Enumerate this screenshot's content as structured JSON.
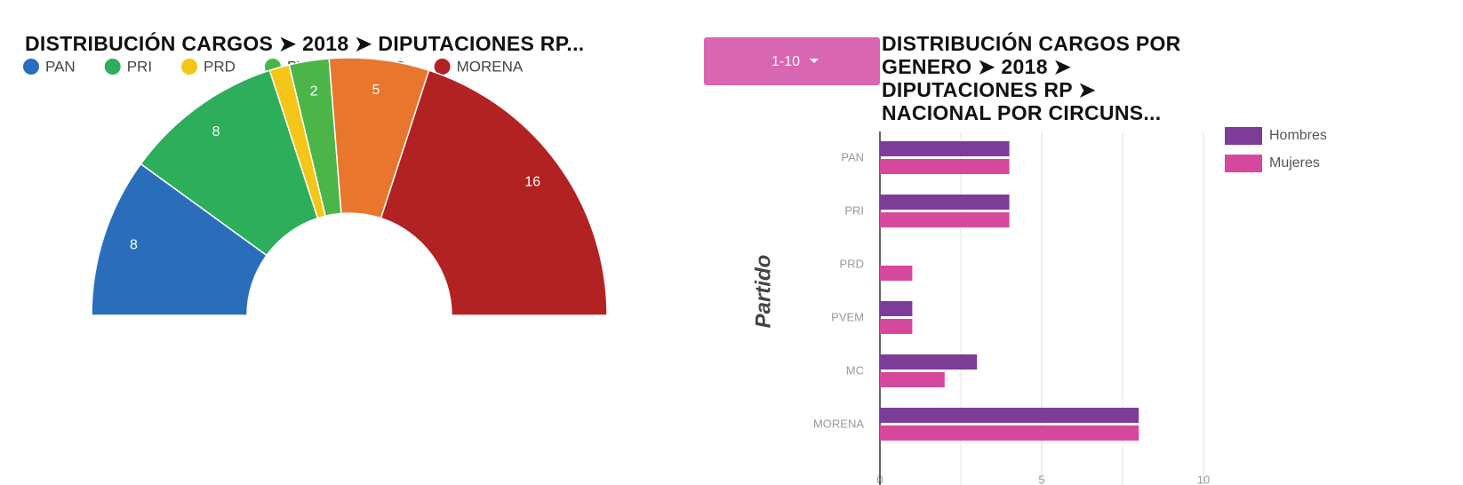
{
  "controls": {
    "page_button": "1-10"
  },
  "chart_data": [
    {
      "type": "donut",
      "title": "DISTRIBUCIÓN CARGOS ➤ 2018 ➤ DIPUTACIONES RP...",
      "categories": [
        "PAN",
        "PRI",
        "PRD",
        "PVEM",
        "MC",
        "MORENA"
      ],
      "values": [
        8,
        8,
        1,
        2,
        5,
        16
      ],
      "colors": [
        "#2a6ebb",
        "#2cae5a",
        "#f5c518",
        "#4bb54a",
        "#e8762c",
        "#b22222"
      ],
      "legend": "top"
    },
    {
      "type": "hbar",
      "title": "DISTRIBUCIÓN CARGOS POR GENERO ➤ 2018 ➤ DIPUTACIONES RP ➤ NACIONAL POR CIRCUNS...",
      "y_label": "Partido",
      "categories": [
        "PAN",
        "PRI",
        "PRD",
        "PVEM",
        "MC",
        "MORENA"
      ],
      "series": [
        {
          "name": "Hombres",
          "color": "#7d3c98",
          "values": [
            4,
            4,
            0,
            1,
            3,
            8
          ]
        },
        {
          "name": "Mujeres",
          "color": "#d6479e",
          "values": [
            4,
            4,
            1,
            1,
            2,
            8
          ]
        }
      ],
      "xlim": [
        0,
        10
      ],
      "xticks": [
        0,
        5,
        10
      ],
      "minor_xticks": [
        2.5,
        7.5
      ],
      "grid": true,
      "legend": "right"
    }
  ]
}
